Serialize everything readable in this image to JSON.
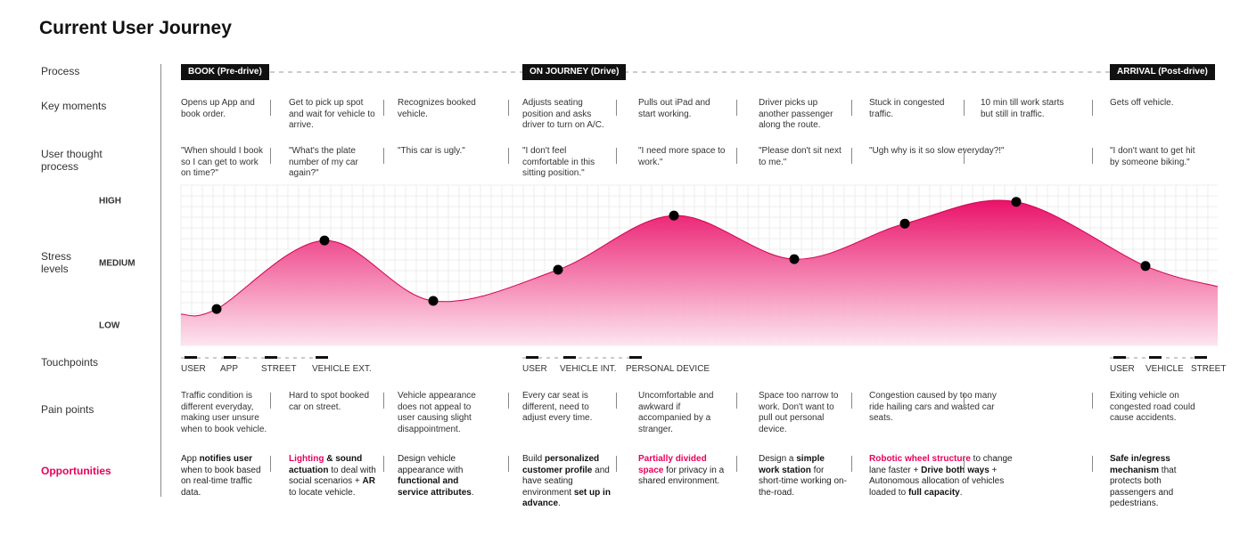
{
  "title": "Current User Journey",
  "row_labels": {
    "process": "Process",
    "key_moments": "Key moments",
    "thoughts": "User thought process",
    "stress": "Stress levels",
    "touchpoints": "Touchpoints",
    "pain_points": "Pain points",
    "opportunities": "Opportunities"
  },
  "stages": [
    "BOOK (Pre-drive)",
    "ON JOURNEY (Drive)",
    "ARRIVAL (Post-drive)"
  ],
  "key_moments": [
    "Opens up App and book order.",
    "Get to pick up spot and wait for vehicle to arrive.",
    "Recognizes booked vehicle.",
    "Adjusts seating position and asks driver to turn on A/C.",
    "Pulls out iPad and start working.",
    "Driver picks up another passenger along the route.",
    "Stuck in congested traffic.",
    "10 min till work starts but still in traffic.",
    "Gets off vehicle."
  ],
  "thoughts": [
    "\"When should I book so I can get to work on time?\"",
    "\"What's the plate number of my car again?\"",
    "\"This car is ugly.\"",
    "\"I don't feel comfortable in this sitting position.\"",
    "\"I need more space to work.\"",
    "\"Please don't sit next to me.\"",
    "\"Ugh why is it so slow everyday?!\"",
    null,
    "\"I don't want to get hit by someone biking.\""
  ],
  "stress": {
    "levels": [
      {
        "value": 2,
        "label": "HIGH"
      },
      {
        "value": 1,
        "label": "MEDIUM"
      },
      {
        "value": 0,
        "label": "LOW"
      }
    ],
    "values": [
      0.27,
      1.37,
      0.4,
      0.9,
      1.77,
      1.07,
      1.64,
      1.99,
      0.96
    ]
  },
  "touchpoints": [
    [
      "USER",
      "APP",
      "STREET",
      "VEHICLE EXT."
    ],
    [
      "USER",
      "VEHICLE INT.",
      "PERSONAL DEVICE"
    ],
    [
      "USER",
      "VEHICLE",
      "STREET"
    ]
  ],
  "pain_points": [
    "Traffic condition is different everyday, making user unsure when to book vehicle.",
    "Hard to spot booked car on street.",
    "Vehicle appearance does not appeal to user causing slight disappointment.",
    "Every car seat is different, need to adjust every time.",
    "Uncomfortable and awkward if accompanied by a stranger.",
    "Space too narrow to work. Don't want to pull out personal device.",
    "Congestion caused by too many ride hailing cars and wasted car seats.",
    null,
    "Exiting vehicle on congested road could cause accidents."
  ],
  "opportunities": [
    [
      {
        "text": "App "
      },
      {
        "text": "notifies user",
        "strong": true
      },
      {
        "text": " when to book based on real-time traffic data."
      }
    ],
    [
      {
        "text": "Lighting",
        "strong": true,
        "accent": true
      },
      {
        "text": " & sound actuation",
        "strong": true
      },
      {
        "text": " to deal with social scenarios + "
      },
      {
        "text": "AR",
        "strong": true
      },
      {
        "text": " to locate vehicle."
      }
    ],
    [
      {
        "text": "Design vehicle appearance with "
      },
      {
        "text": "functional and service attributes",
        "strong": true
      },
      {
        "text": "."
      }
    ],
    [
      {
        "text": "Build "
      },
      {
        "text": "personalized customer profile",
        "strong": true
      },
      {
        "text": " and have seating environment "
      },
      {
        "text": "set up in advance",
        "strong": true
      },
      {
        "text": "."
      }
    ],
    [
      {
        "text": "Partially divided space",
        "strong": true,
        "accent": true
      },
      {
        "text": " for privacy in a shared environment."
      }
    ],
    [
      {
        "text": "Design a "
      },
      {
        "text": "simple work station",
        "strong": true
      },
      {
        "text": " for short-time working on-the-road."
      }
    ],
    [
      {
        "text": "Robotic wheel structure",
        "strong": true,
        "accent": true
      },
      {
        "text": " to change lane faster + "
      },
      {
        "text": "Drive both ways",
        "strong": true
      },
      {
        "text": " + Autonomous allocation of vehicles loaded to "
      },
      {
        "text": "full capacity",
        "strong": true
      },
      {
        "text": "."
      }
    ],
    null,
    [
      {
        "text": "Safe in/egress mechanism",
        "strong": true
      },
      {
        "text": " that protects both passengers and pedestrians."
      }
    ]
  ]
}
